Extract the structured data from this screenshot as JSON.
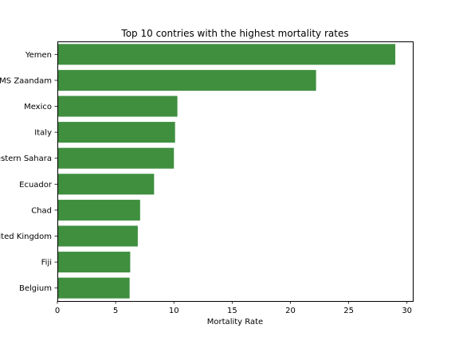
{
  "chart_data": {
    "type": "bar",
    "orientation": "horizontal",
    "title": "Top 10 contries with the highest mortality rates",
    "xlabel": "Mortality Rate",
    "ylabel": "",
    "categories": [
      "Yemen",
      "MS Zaandam",
      "Mexico",
      "Italy",
      "Western Sahara",
      "Ecuador",
      "Chad",
      "United Kingdom",
      "Fiji",
      "Belgium"
    ],
    "values": [
      29.0,
      22.2,
      10.3,
      10.1,
      10.0,
      8.3,
      7.1,
      6.9,
      6.25,
      6.2
    ],
    "xlim": [
      0,
      30.5
    ],
    "xticks": [
      0,
      5,
      10,
      15,
      20,
      25,
      30
    ],
    "bar_color": "#3f8f3f",
    "grid": false,
    "legend": "none"
  }
}
